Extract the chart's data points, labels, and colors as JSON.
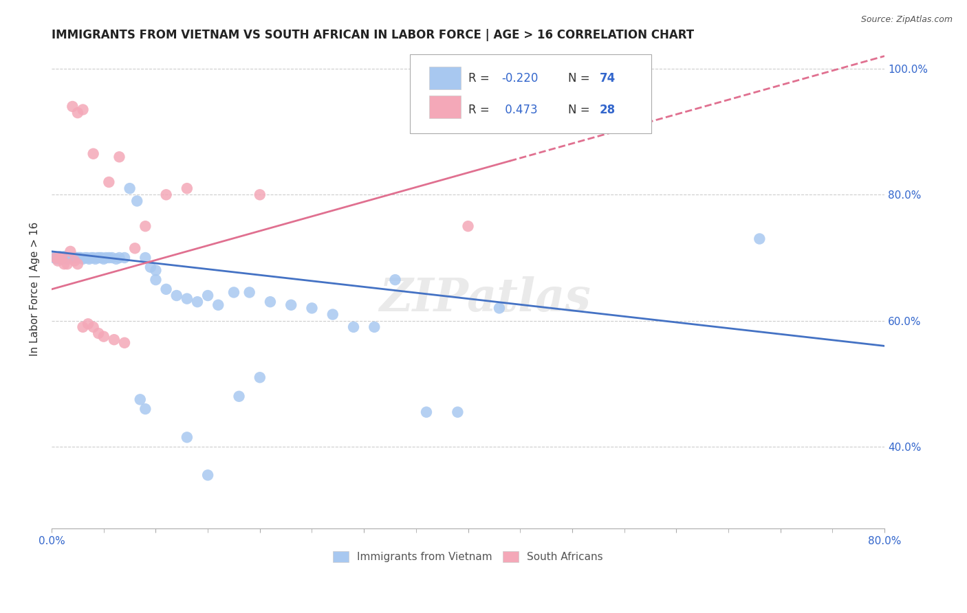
{
  "title": "IMMIGRANTS FROM VIETNAM VS SOUTH AFRICAN IN LABOR FORCE | AGE > 16 CORRELATION CHART",
  "source": "Source: ZipAtlas.com",
  "ylabel": "In Labor Force | Age > 16",
  "xlim": [
    0.0,
    0.8
  ],
  "ylim": [
    0.27,
    1.03
  ],
  "vietnam_color": "#a8c8f0",
  "sa_color": "#f4a8b8",
  "vietnam_line_color": "#4472c4",
  "sa_line_color": "#e07090",
  "watermark": "ZIPatlas",
  "vietnam_x": [
    0.002,
    0.004,
    0.005,
    0.006,
    0.007,
    0.008,
    0.009,
    0.01,
    0.011,
    0.012,
    0.013,
    0.014,
    0.015,
    0.016,
    0.017,
    0.018,
    0.019,
    0.02,
    0.021,
    0.022,
    0.023,
    0.024,
    0.025,
    0.026,
    0.027,
    0.028,
    0.03,
    0.032,
    0.034,
    0.036,
    0.038,
    0.04,
    0.042,
    0.044,
    0.046,
    0.048,
    0.05,
    0.052,
    0.055,
    0.058,
    0.062,
    0.065,
    0.07,
    0.075,
    0.082,
    0.09,
    0.1,
    0.11,
    0.12,
    0.13,
    0.14,
    0.15,
    0.16,
    0.175,
    0.19,
    0.21,
    0.23,
    0.25,
    0.27,
    0.29,
    0.31,
    0.33,
    0.36,
    0.39,
    0.13,
    0.15,
    0.18,
    0.2,
    0.085,
    0.09,
    0.095,
    0.1,
    0.43,
    0.68
  ],
  "vietnam_y": [
    0.7,
    0.7,
    0.698,
    0.7,
    0.7,
    0.702,
    0.7,
    0.698,
    0.7,
    0.702,
    0.7,
    0.7,
    0.698,
    0.7,
    0.7,
    0.7,
    0.7,
    0.7,
    0.7,
    0.7,
    0.7,
    0.7,
    0.7,
    0.7,
    0.7,
    0.7,
    0.698,
    0.7,
    0.7,
    0.698,
    0.7,
    0.7,
    0.698,
    0.7,
    0.7,
    0.7,
    0.698,
    0.7,
    0.7,
    0.7,
    0.698,
    0.7,
    0.7,
    0.81,
    0.79,
    0.7,
    0.665,
    0.65,
    0.64,
    0.635,
    0.63,
    0.64,
    0.625,
    0.645,
    0.645,
    0.63,
    0.625,
    0.62,
    0.61,
    0.59,
    0.59,
    0.665,
    0.455,
    0.455,
    0.415,
    0.355,
    0.48,
    0.51,
    0.475,
    0.46,
    0.685,
    0.68,
    0.62,
    0.73
  ],
  "sa_x": [
    0.004,
    0.006,
    0.008,
    0.01,
    0.012,
    0.015,
    0.018,
    0.022,
    0.025,
    0.03,
    0.035,
    0.04,
    0.045,
    0.05,
    0.06,
    0.07,
    0.09,
    0.11,
    0.13,
    0.08,
    0.055,
    0.065,
    0.04,
    0.02,
    0.025,
    0.03,
    0.4,
    0.2
  ],
  "sa_y": [
    0.7,
    0.695,
    0.7,
    0.7,
    0.69,
    0.69,
    0.71,
    0.695,
    0.69,
    0.59,
    0.595,
    0.59,
    0.58,
    0.575,
    0.57,
    0.565,
    0.75,
    0.8,
    0.81,
    0.715,
    0.82,
    0.86,
    0.865,
    0.94,
    0.93,
    0.935,
    0.75,
    0.8
  ],
  "viet_line_x": [
    0.0,
    0.8
  ],
  "viet_line_y": [
    0.71,
    0.56
  ],
  "sa_line_x": [
    0.0,
    0.8
  ],
  "sa_line_y": [
    0.65,
    1.02
  ]
}
